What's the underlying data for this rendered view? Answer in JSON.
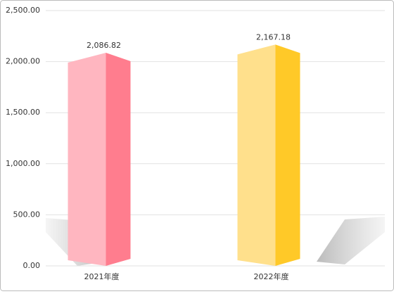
{
  "chart_data": {
    "type": "bar3d",
    "categories": [
      "2021年度",
      "2022年度"
    ],
    "values": [
      2086.82,
      2167.18
    ],
    "value_labels": [
      "2,086.82",
      "2,167.18"
    ],
    "colors": [
      [
        "#ffb6c0",
        "#ff7d8e"
      ],
      [
        "#ffe08c",
        "#ffc928"
      ]
    ],
    "ylim": [
      0,
      2500
    ],
    "yticks": [
      {
        "value": 0,
        "label": "0.00"
      },
      {
        "value": 500,
        "label": "500.00"
      },
      {
        "value": 1000,
        "label": "1,000.00"
      },
      {
        "value": 1500,
        "label": "1,500.00"
      },
      {
        "value": 2000,
        "label": "2,000.00"
      },
      {
        "value": 2500,
        "label": "2,500.00"
      }
    ],
    "grid": true
  }
}
